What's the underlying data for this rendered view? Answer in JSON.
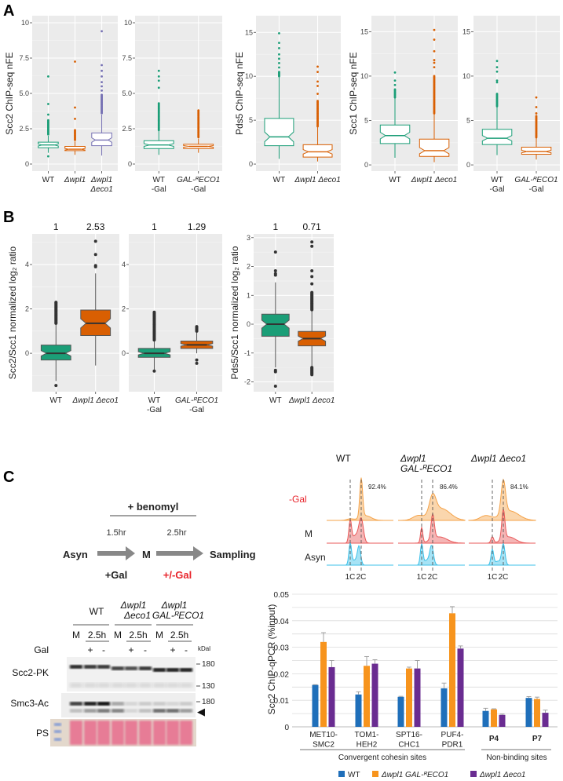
{
  "panel_labels": {
    "a": "A",
    "b": "B",
    "c": "C"
  },
  "chart_data": [
    {
      "id": "A1",
      "type": "box",
      "ylabel": "Scc2 ChIP-seq nFE",
      "ylim": [
        -0.5,
        10.5
      ],
      "yticks": [
        0,
        2.5,
        5,
        7.5,
        10
      ],
      "ytick_labels": [
        "0",
        "2.5",
        "5.0",
        "7.5",
        "10"
      ],
      "notch": true,
      "filled": false,
      "boxes": [
        {
          "label": [
            "WT"
          ],
          "color": "#1b9e77",
          "q1": 1.15,
          "median": 1.35,
          "q3": 1.55,
          "lo": 0.8,
          "hi": 2.0,
          "outliers": [
            0.55,
            3.5,
            4.25,
            6.2
          ],
          "outlier_range": [
            2.1,
            3.1
          ]
        },
        {
          "label": [
            "Δwpl1"
          ],
          "color": "#d95f02",
          "q1": 0.95,
          "median": 1.05,
          "q3": 1.25,
          "lo": 0.65,
          "hi": 1.6,
          "outliers": [
            3.2,
            4.0,
            7.25
          ],
          "outlier_range": [
            1.7,
            2.4
          ]
        },
        {
          "label": [
            "Δwpl1",
            "Δeco1"
          ],
          "color": "#7570b3",
          "q1": 1.3,
          "median": 1.7,
          "q3": 2.2,
          "lo": 0.6,
          "hi": 3.5,
          "outliers": [
            5.2,
            5.5,
            5.8,
            6.2,
            6.6,
            7.0,
            9.4
          ],
          "outlier_range": [
            3.6,
            4.9
          ]
        }
      ]
    },
    {
      "id": "A2",
      "type": "box",
      "ylabel": "",
      "ylim": [
        -0.5,
        10.5
      ],
      "yticks": [
        0,
        2.5,
        5,
        7.5,
        10
      ],
      "ytick_labels": [
        "0",
        "2.5",
        "5.0",
        "7.5",
        "10"
      ],
      "notch": true,
      "filled": false,
      "boxes": [
        {
          "label": [
            "WT",
            "-Gal"
          ],
          "color": "#1b9e77",
          "q1": 1.1,
          "median": 1.35,
          "q3": 1.65,
          "lo": 0.65,
          "hi": 2.4,
          "outliers": [
            5.4,
            5.9,
            6.2,
            6.6
          ],
          "outlier_range": [
            2.4,
            4.3
          ]
        },
        {
          "label": [
            "GAL-ᴿECO1",
            "-Gal"
          ],
          "color": "#d95f02",
          "q1": 1.1,
          "median": 1.25,
          "q3": 1.4,
          "lo": 0.8,
          "hi": 1.8,
          "outliers": [],
          "outlier_range": [
            1.9,
            3.8
          ]
        }
      ]
    },
    {
      "id": "A3",
      "type": "box",
      "ylabel": "Pds5 ChIP-seq nFE",
      "ylim": [
        -0.8,
        16.9
      ],
      "yticks": [
        0,
        5,
        10,
        15
      ],
      "ytick_labels": [
        "0",
        "5",
        "10",
        "15"
      ],
      "notch": true,
      "filled": false,
      "boxes": [
        {
          "label": [
            "WT"
          ],
          "color": "#1b9e77",
          "q1": 2.1,
          "median": 3.1,
          "q3": 5.2,
          "lo": 0.6,
          "hi": 9.9,
          "outliers": [
            10.5,
            11.0,
            11.5,
            12.0,
            12.5,
            13.2,
            13.8,
            14.9
          ],
          "outlier_range": [
            10.0,
            10.4
          ]
        },
        {
          "label": [
            "Δwpl1 Δeco1"
          ],
          "color": "#d95f02",
          "q1": 0.8,
          "median": 1.4,
          "q3": 2.2,
          "lo": 0.3,
          "hi": 4.2,
          "outliers": [
            8.0,
            8.9,
            9.4,
            10.5,
            11.1
          ],
          "outlier_range": [
            4.3,
            7.2
          ]
        }
      ]
    },
    {
      "id": "A4",
      "type": "box",
      "ylabel": "Scc1 ChIP-seq nFE",
      "ylim": [
        -0.7,
        16.8
      ],
      "yticks": [
        0,
        5,
        10,
        15
      ],
      "ytick_labels": [
        "0",
        "5",
        "10",
        "15"
      ],
      "notch": true,
      "filled": false,
      "boxes": [
        {
          "label": [
            "WT"
          ],
          "color": "#1b9e77",
          "q1": 2.4,
          "median": 3.3,
          "q3": 4.5,
          "lo": 0.8,
          "hi": 7.5,
          "outliers": [
            9.0,
            9.5,
            10.4
          ],
          "outlier_range": [
            7.6,
            8.5
          ]
        },
        {
          "label": [
            "Δwpl1 Δeco1"
          ],
          "color": "#d95f02",
          "q1": 0.95,
          "median": 1.6,
          "q3": 2.9,
          "lo": 0.3,
          "hi": 5.8,
          "outliers": [
            11.0,
            11.5,
            11.8,
            12.8,
            14.1,
            15.2
          ],
          "outlier_range": [
            5.8,
            10.0
          ]
        }
      ]
    },
    {
      "id": "A5",
      "type": "box",
      "ylabel": "",
      "ylim": [
        -0.7,
        16.8
      ],
      "yticks": [
        0,
        5,
        10,
        15
      ],
      "ytick_labels": [
        "0",
        "5",
        "10",
        "15"
      ],
      "notch": true,
      "filled": false,
      "boxes": [
        {
          "label": [
            "WT",
            "-Gal"
          ],
          "color": "#1b9e77",
          "q1": 2.3,
          "median": 3.0,
          "q3": 4.0,
          "lo": 1.1,
          "hi": 6.5,
          "outliers": [
            9.3,
            9.5,
            10.5,
            11.0,
            11.7
          ],
          "outlier_range": [
            6.6,
            8.0
          ]
        },
        {
          "label": [
            "GAL-ᴿECO1",
            "-Gal"
          ],
          "color": "#d95f02",
          "q1": 1.2,
          "median": 1.5,
          "q3": 2.0,
          "lo": 0.6,
          "hi": 3.1,
          "outliers": [
            5.8,
            6.5,
            7.6
          ],
          "outlier_range": [
            3.1,
            5.5
          ]
        }
      ]
    },
    {
      "id": "B1",
      "type": "box",
      "ylabel": "Scc2/Scc1 normalized log₂ ratio",
      "ylim": [
        -1.73,
        5.38
      ],
      "yticks": [
        0,
        2,
        4
      ],
      "ytick_labels": [
        "0",
        "2",
        "4"
      ],
      "notch": true,
      "filled": true,
      "boxes": [
        {
          "label": [
            "WT"
          ],
          "top_value": "1",
          "color": "#1b9e77",
          "q1": -0.3,
          "median": 0.0,
          "q3": 0.37,
          "lo": -1.25,
          "hi": 1.35,
          "outliers": [
            -1.45
          ],
          "outlier_range": [
            1.35,
            2.3
          ]
        },
        {
          "label": [
            "Δwpl1 Δeco1"
          ],
          "top_value": "2.53",
          "color": "#d95f02",
          "q1": 0.8,
          "median": 1.35,
          "q3": 1.95,
          "lo": -0.55,
          "hi": 3.6,
          "outliers": [
            3.9,
            3.95,
            4.45,
            5.05
          ],
          "outlier_range": null
        }
      ]
    },
    {
      "id": "B2",
      "type": "box",
      "ylabel": "",
      "ylim": [
        -1.73,
        5.38
      ],
      "yticks": [
        0,
        2,
        4
      ],
      "ytick_labels": [
        "0",
        "2",
        "4"
      ],
      "notch": true,
      "filled": true,
      "boxes": [
        {
          "label": [
            "WT",
            "-Gal"
          ],
          "top_value": "1",
          "color": "#1b9e77",
          "q1": -0.18,
          "median": 0.0,
          "q3": 0.22,
          "lo": -0.8,
          "hi": 0.55,
          "outliers": [
            1.3,
            -0.8
          ],
          "outlier_range": [
            0.6,
            1.85
          ]
        },
        {
          "label": [
            "GAL-ᴿECO1",
            "-Gal"
          ],
          "top_value": "1.29",
          "color": "#d95f02",
          "q1": 0.22,
          "median": 0.38,
          "q3": 0.55,
          "lo": 0.0,
          "hi": 1.0,
          "outliers": [
            -0.3,
            -0.45
          ],
          "outlier_range": [
            1.0,
            1.2
          ]
        }
      ]
    },
    {
      "id": "B3",
      "type": "box",
      "ylabel": "Pds5/Scc1 normalized log₂ ratio",
      "ylim": [
        -2.34,
        3.13
      ],
      "yticks": [
        -2,
        -1,
        0,
        1,
        2,
        3
      ],
      "ytick_labels": [
        "-2",
        "-1",
        "0",
        "1",
        "2",
        "3"
      ],
      "notch": true,
      "filled": true,
      "boxes": [
        {
          "label": [
            "WT"
          ],
          "top_value": "1",
          "color": "#1b9e77",
          "q1": -0.42,
          "median": 0.0,
          "q3": 0.35,
          "lo": -1.5,
          "hi": 1.45,
          "outliers": [
            -1.6,
            -1.65,
            -2.15,
            1.7,
            1.75,
            1.85,
            2.5
          ],
          "outlier_range": null
        },
        {
          "label": [
            "Δwpl1 Δeco1"
          ],
          "top_value": "0.71",
          "color": "#d95f02",
          "q1": -0.75,
          "median": -0.5,
          "q3": -0.25,
          "lo": -1.45,
          "hi": 0.45,
          "outliers": [
            1.4,
            1.65,
            1.85,
            2.7,
            2.85
          ],
          "outlier_range": [
            0.5,
            1.1
          ],
          "outlier_range2": [
            -1.75,
            -1.5
          ]
        }
      ]
    },
    {
      "id": "C-bar",
      "type": "bar",
      "ylabel": "Scc2 ChIP-qPCR (%input)",
      "ylim": [
        0,
        0.05
      ],
      "yticks": [
        0,
        0.01,
        0.02,
        0.03,
        0.04,
        0.05
      ],
      "ytick_labels": [
        "0",
        "0.01",
        "0.02",
        "0.03",
        "0.04",
        "0.05"
      ],
      "categories": [
        {
          "label": [
            "MET10-",
            "SMC2"
          ],
          "bold": false
        },
        {
          "label": [
            "TOM1-",
            "HEH2"
          ],
          "bold": false
        },
        {
          "label": [
            "SPT16-",
            "CHC1"
          ],
          "bold": false
        },
        {
          "label": [
            "PUF4-",
            "PDR1"
          ],
          "bold": false
        },
        {
          "label": [
            "P4"
          ],
          "bold": true
        },
        {
          "label": [
            "P7"
          ],
          "bold": true
        }
      ],
      "groups": [
        {
          "label": "Convergent cohesin sites",
          "span": [
            0,
            3
          ]
        },
        {
          "label": "Non-binding sites",
          "span": [
            4,
            5
          ]
        }
      ],
      "series": [
        {
          "name": "WT",
          "color": "#1f6fba",
          "values": [
            0.0158,
            0.0122,
            0.0113,
            0.0145,
            0.006,
            0.0109
          ],
          "errors": [
            0.0001,
            0.001,
            0.0002,
            0.002,
            0.001,
            0.0005
          ]
        },
        {
          "name": "Δwpl1 GAL-ᴿECO1",
          "color": "#f7941d",
          "values": [
            0.032,
            0.023,
            0.022,
            0.0428,
            0.0066,
            0.0105
          ],
          "errors": [
            0.0035,
            0.0035,
            0.0005,
            0.0025,
            0.0002,
            0.0007
          ]
        },
        {
          "name": "Δwpl1 Δeco1",
          "color": "#6a2c91",
          "values": [
            0.0225,
            0.0238,
            0.022,
            0.0295,
            0.0045,
            0.0053
          ],
          "errors": [
            0.0025,
            0.0015,
            0.003,
            0.001,
            0.0003,
            0.001
          ]
        }
      ],
      "legend": "bottom"
    },
    {
      "id": "C-flow",
      "type": "area",
      "xlabel_ticks": [
        "1C",
        "2C"
      ],
      "row_labels": [
        "-Gal",
        "M",
        "Asyn"
      ],
      "row_colors": [
        "#f5a34a",
        "#e85a5a",
        "#3cc0e8"
      ],
      "row_label_colors": [
        "#e8242b",
        "#222222",
        "#222222"
      ],
      "columns": [
        {
          "title": [
            "WT"
          ],
          "percent": "92.4%",
          "rows": [
            [
              [
                2.0,
                50,
                0.13
              ],
              [
                2.4,
                6,
                0.5
              ],
              [
                1.0,
                2,
                0.3
              ]
            ],
            [
              [
                1.0,
                28,
                0.12
              ],
              [
                2.0,
                30,
                0.2
              ],
              [
                1.5,
                10,
                0.3
              ]
            ],
            [
              [
                1.0,
                28,
                0.12
              ],
              [
                1.8,
                24,
                0.15
              ],
              [
                1.4,
                6,
                0.2
              ]
            ]
          ]
        },
        {
          "title": [
            "Δwpl1",
            "GAL-ᴿECO1"
          ],
          "percent": "86.4%",
          "rows": [
            [
              [
                0.7,
                6,
                0.5
              ],
              [
                2.0,
                25,
                0.3
              ],
              [
                2.8,
                15,
                0.8
              ]
            ],
            [
              [
                1.0,
                20,
                0.1
              ],
              [
                2.0,
                32,
                0.15
              ],
              [
                2.6,
                8,
                0.7
              ]
            ],
            [
              [
                1.0,
                27,
                0.12
              ],
              [
                1.9,
                25,
                0.17
              ],
              [
                1.45,
                6,
                0.2
              ]
            ]
          ]
        },
        {
          "title": [
            "Δwpl1 Δeco1"
          ],
          "percent": "84.1%",
          "rows": [
            [
              [
                0.4,
                6,
                0.5
              ],
              [
                2.0,
                43,
                0.2
              ],
              [
                2.6,
                12,
                0.8
              ]
            ],
            [
              [
                1.0,
                8,
                0.12
              ],
              [
                2.0,
                38,
                0.14
              ],
              [
                2.5,
                8,
                0.6
              ]
            ],
            [
              [
                1.0,
                20,
                0.12
              ],
              [
                2.0,
                27,
                0.15
              ],
              [
                1.5,
                5,
                0.25
              ]
            ]
          ]
        }
      ]
    }
  ],
  "schematic": {
    "treatment": "+ benomyl",
    "step1_time": "1.5hr",
    "step2_time": "2.5hr",
    "start": "Asyn",
    "middle": "M",
    "end": "Sampling",
    "step1_cond": "+Gal",
    "step2_cond": "+/-Gal",
    "step2_cond_color": "#e8242b"
  },
  "blot": {
    "strains": [
      {
        "lines": [
          "WT"
        ]
      },
      {
        "lines": [
          "Δwpl1",
          "Δeco1"
        ]
      },
      {
        "lines": [
          "Δwpl1",
          "GAL-ᴿECO1"
        ]
      }
    ],
    "timepoints": [
      "M",
      "2.5h"
    ],
    "gal_row_label": "Gal",
    "gal_marks": [
      "+",
      "-"
    ],
    "kda_label": "kDal",
    "rows": [
      "Scc2-PK",
      "Smc3-Ac",
      "PS"
    ],
    "markers": [
      "180",
      "130",
      "180"
    ],
    "arrowhead": "◀",
    "scc2_band_intensity": [
      0.9,
      0.85,
      0.85,
      0.8,
      0.75,
      0.85,
      0.95,
      0.95,
      0.95
    ],
    "smc3_upper_band_intensity": [
      0.8,
      0.95,
      1.0,
      0.3,
      0.1,
      0.15,
      0.15,
      0.1,
      0.15
    ],
    "smc3_lower_band_intensity": [
      0.2,
      0.4,
      0.55,
      0.5,
      0.1,
      0.2,
      0.6,
      0.6,
      0.4
    ]
  }
}
